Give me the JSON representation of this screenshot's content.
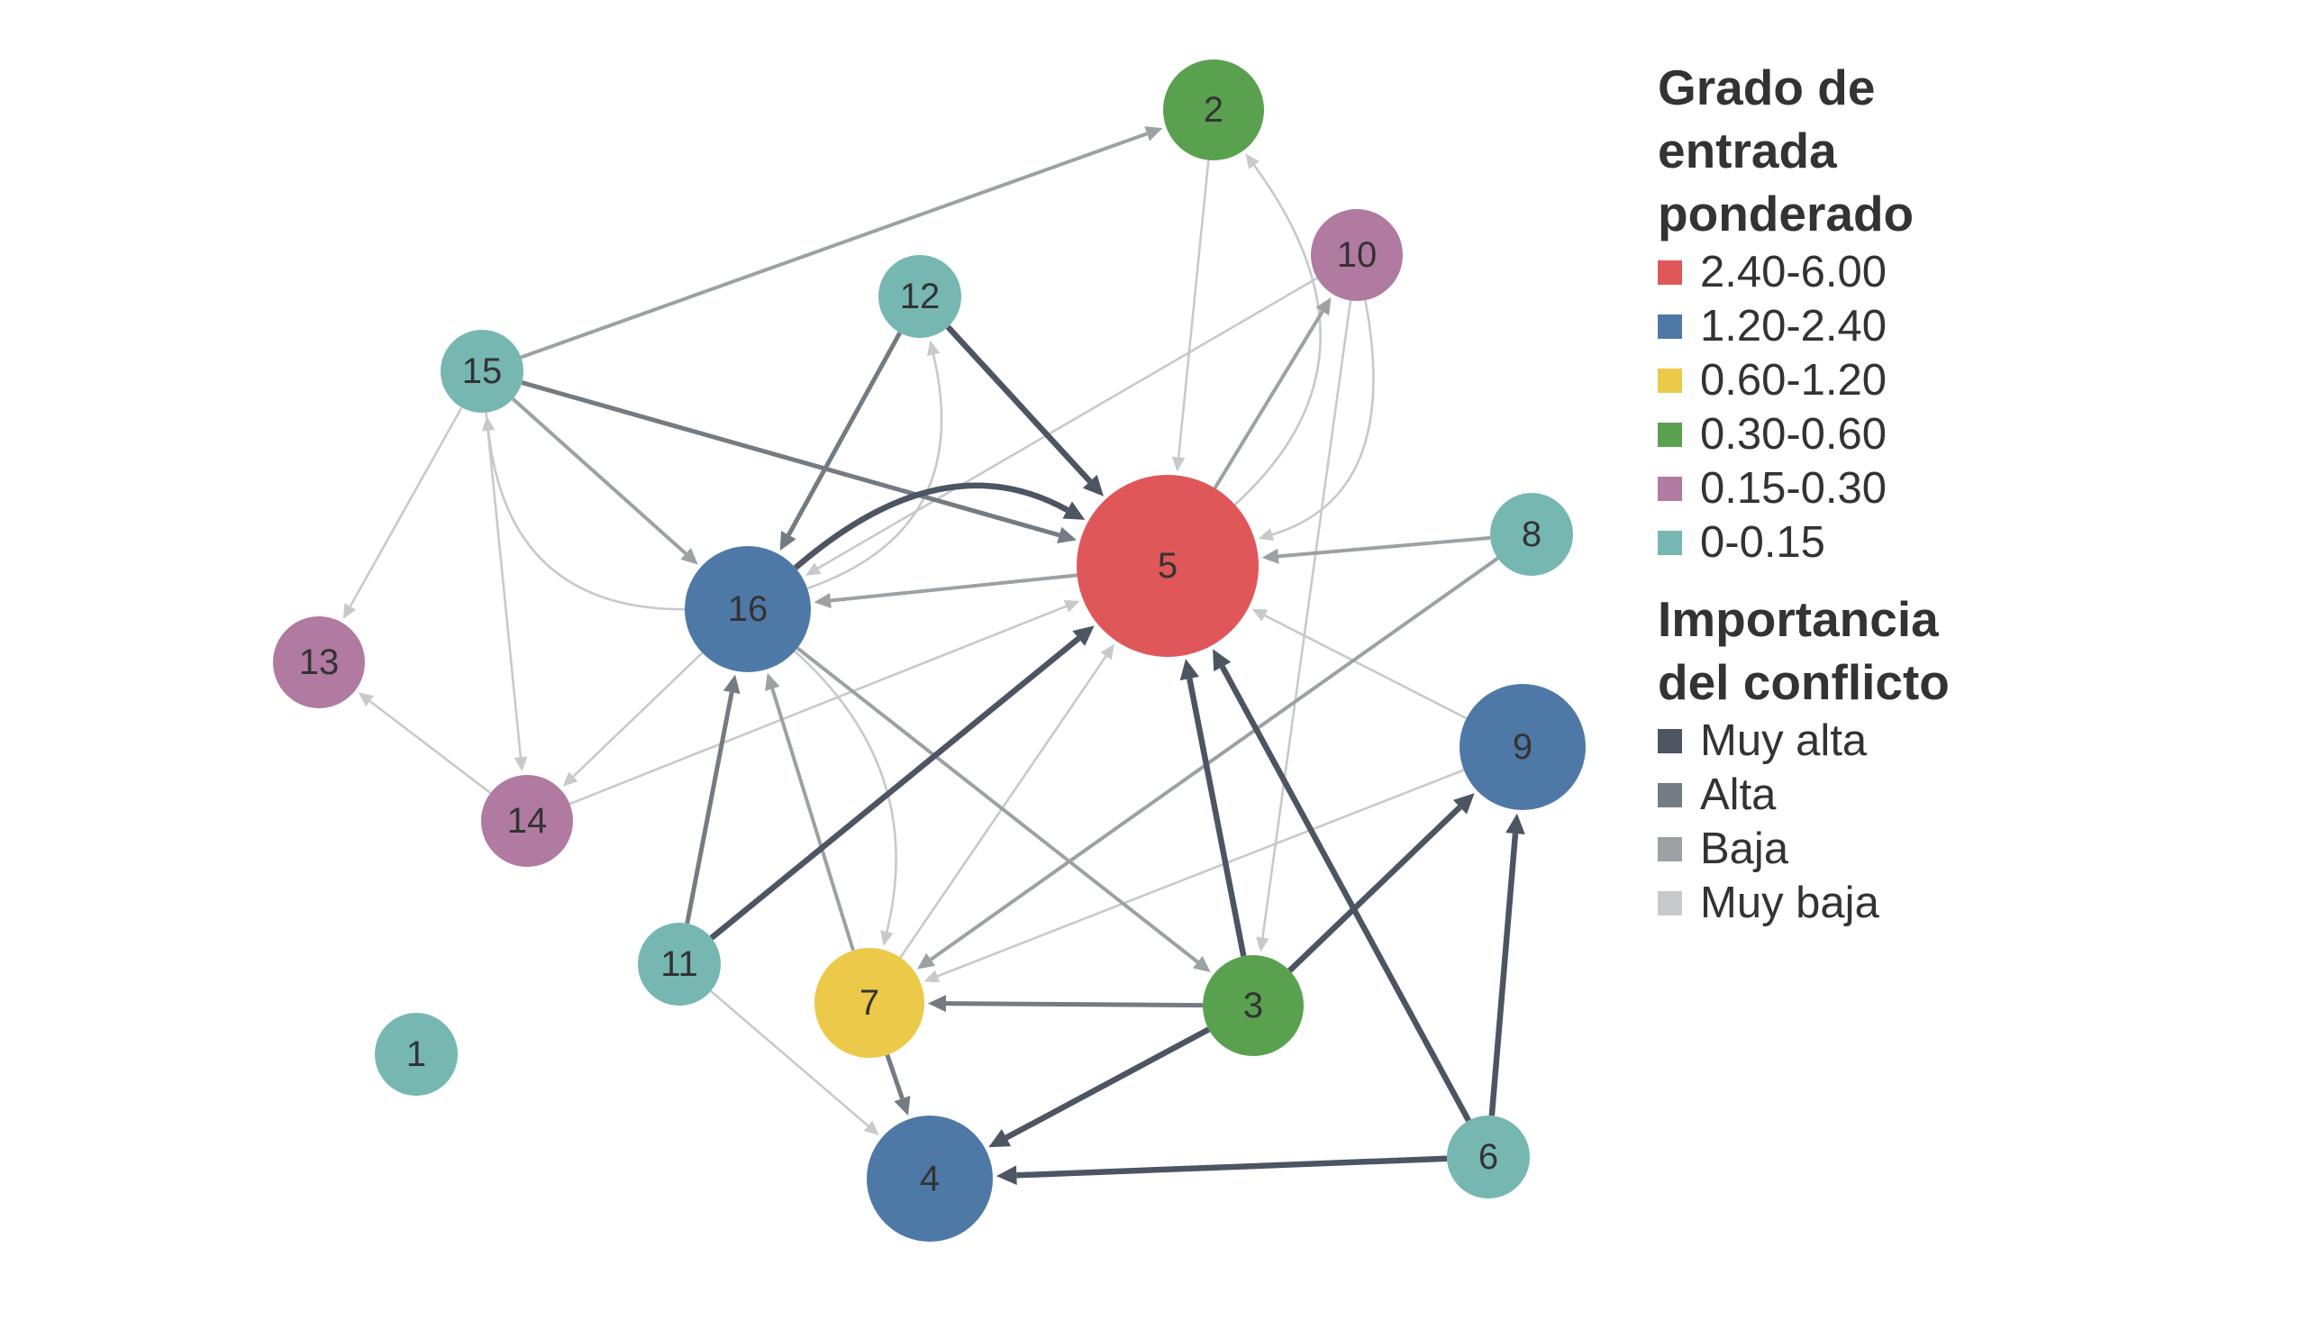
{
  "legend": {
    "degree_title": [
      "Grado de",
      "entrada",
      "ponderado"
    ],
    "degree_items": [
      {
        "label": "2.40-6.00",
        "color": "#e0575a"
      },
      {
        "label": "1.20-2.40",
        "color": "#4e79a7"
      },
      {
        "label": "0.60-1.20",
        "color": "#edc949"
      },
      {
        "label": "0.30-0.60",
        "color": "#59a14f"
      },
      {
        "label": "0.15-0.30",
        "color": "#b07aa1"
      },
      {
        "label": "0-0.15",
        "color": "#76b7b2"
      }
    ],
    "conflict_title": [
      "Importancia",
      "del conflicto"
    ],
    "conflict_items": [
      {
        "label": "Muy alta",
        "color": "#4d5562"
      },
      {
        "label": "Alta",
        "color": "#737b83"
      },
      {
        "label": "Baja",
        "color": "#9ca1a4"
      },
      {
        "label": "Muy baja",
        "color": "#c8c9cb"
      }
    ]
  },
  "nodes": [
    {
      "id": "1",
      "class": "0-0.15"
    },
    {
      "id": "2",
      "class": "0.30-0.60"
    },
    {
      "id": "3",
      "class": "0.30-0.60"
    },
    {
      "id": "4",
      "class": "1.20-2.40"
    },
    {
      "id": "5",
      "class": "2.40-6.00"
    },
    {
      "id": "6",
      "class": "0-0.15"
    },
    {
      "id": "7",
      "class": "0.60-1.20"
    },
    {
      "id": "8",
      "class": "0-0.15"
    },
    {
      "id": "9",
      "class": "1.20-2.40"
    },
    {
      "id": "10",
      "class": "0.15-0.30"
    },
    {
      "id": "11",
      "class": "0-0.15"
    },
    {
      "id": "12",
      "class": "0-0.15"
    },
    {
      "id": "13",
      "class": "0.15-0.30"
    },
    {
      "id": "14",
      "class": "0.15-0.30"
    },
    {
      "id": "15",
      "class": "0-0.15"
    },
    {
      "id": "16",
      "class": "1.20-2.40"
    }
  ],
  "edges": [
    {
      "from": "15",
      "to": "2",
      "importance": "Baja"
    },
    {
      "from": "15",
      "to": "5",
      "importance": "Alta"
    },
    {
      "from": "15",
      "to": "16",
      "importance": "Baja"
    },
    {
      "from": "15",
      "to": "13",
      "importance": "Muy baja"
    },
    {
      "from": "15",
      "to": "14",
      "importance": "Muy baja"
    },
    {
      "from": "16",
      "to": "15",
      "importance": "Muy baja"
    },
    {
      "from": "12",
      "to": "5",
      "importance": "Muy alta"
    },
    {
      "from": "12",
      "to": "16",
      "importance": "Alta"
    },
    {
      "from": "16",
      "to": "12",
      "importance": "Muy baja"
    },
    {
      "from": "16",
      "to": "5",
      "importance": "Muy alta"
    },
    {
      "from": "5",
      "to": "16",
      "importance": "Baja"
    },
    {
      "from": "5",
      "to": "2",
      "importance": "Muy baja"
    },
    {
      "from": "2",
      "to": "5",
      "importance": "Muy baja"
    },
    {
      "from": "5",
      "to": "10",
      "importance": "Baja"
    },
    {
      "from": "10",
      "to": "5",
      "importance": "Muy baja"
    },
    {
      "from": "10",
      "to": "16",
      "importance": "Muy baja"
    },
    {
      "from": "10",
      "to": "3",
      "importance": "Muy baja"
    },
    {
      "from": "8",
      "to": "5",
      "importance": "Baja"
    },
    {
      "from": "8",
      "to": "7",
      "importance": "Baja"
    },
    {
      "from": "9",
      "to": "5",
      "importance": "Muy baja"
    },
    {
      "from": "9",
      "to": "7",
      "importance": "Muy baja"
    },
    {
      "from": "16",
      "to": "14",
      "importance": "Muy baja"
    },
    {
      "from": "14",
      "to": "13",
      "importance": "Muy baja"
    },
    {
      "from": "14",
      "to": "5",
      "importance": "Muy baja"
    },
    {
      "from": "16",
      "to": "3",
      "importance": "Baja"
    },
    {
      "from": "16",
      "to": "7",
      "importance": "Muy baja"
    },
    {
      "from": "11",
      "to": "16",
      "importance": "Alta"
    },
    {
      "from": "11",
      "to": "5",
      "importance": "Muy alta"
    },
    {
      "from": "11",
      "to": "4",
      "importance": "Muy baja"
    },
    {
      "from": "7",
      "to": "16",
      "importance": "Baja"
    },
    {
      "from": "7",
      "to": "5",
      "importance": "Muy baja"
    },
    {
      "from": "7",
      "to": "4",
      "importance": "Alta"
    },
    {
      "from": "3",
      "to": "5",
      "importance": "Muy alta"
    },
    {
      "from": "3",
      "to": "7",
      "importance": "Alta"
    },
    {
      "from": "3",
      "to": "9",
      "importance": "Muy alta"
    },
    {
      "from": "3",
      "to": "4",
      "importance": "Muy alta"
    },
    {
      "from": "6",
      "to": "5",
      "importance": "Muy alta"
    },
    {
      "from": "6",
      "to": "9",
      "importance": "Muy alta"
    },
    {
      "from": "6",
      "to": "4",
      "importance": "Muy alta"
    }
  ]
}
